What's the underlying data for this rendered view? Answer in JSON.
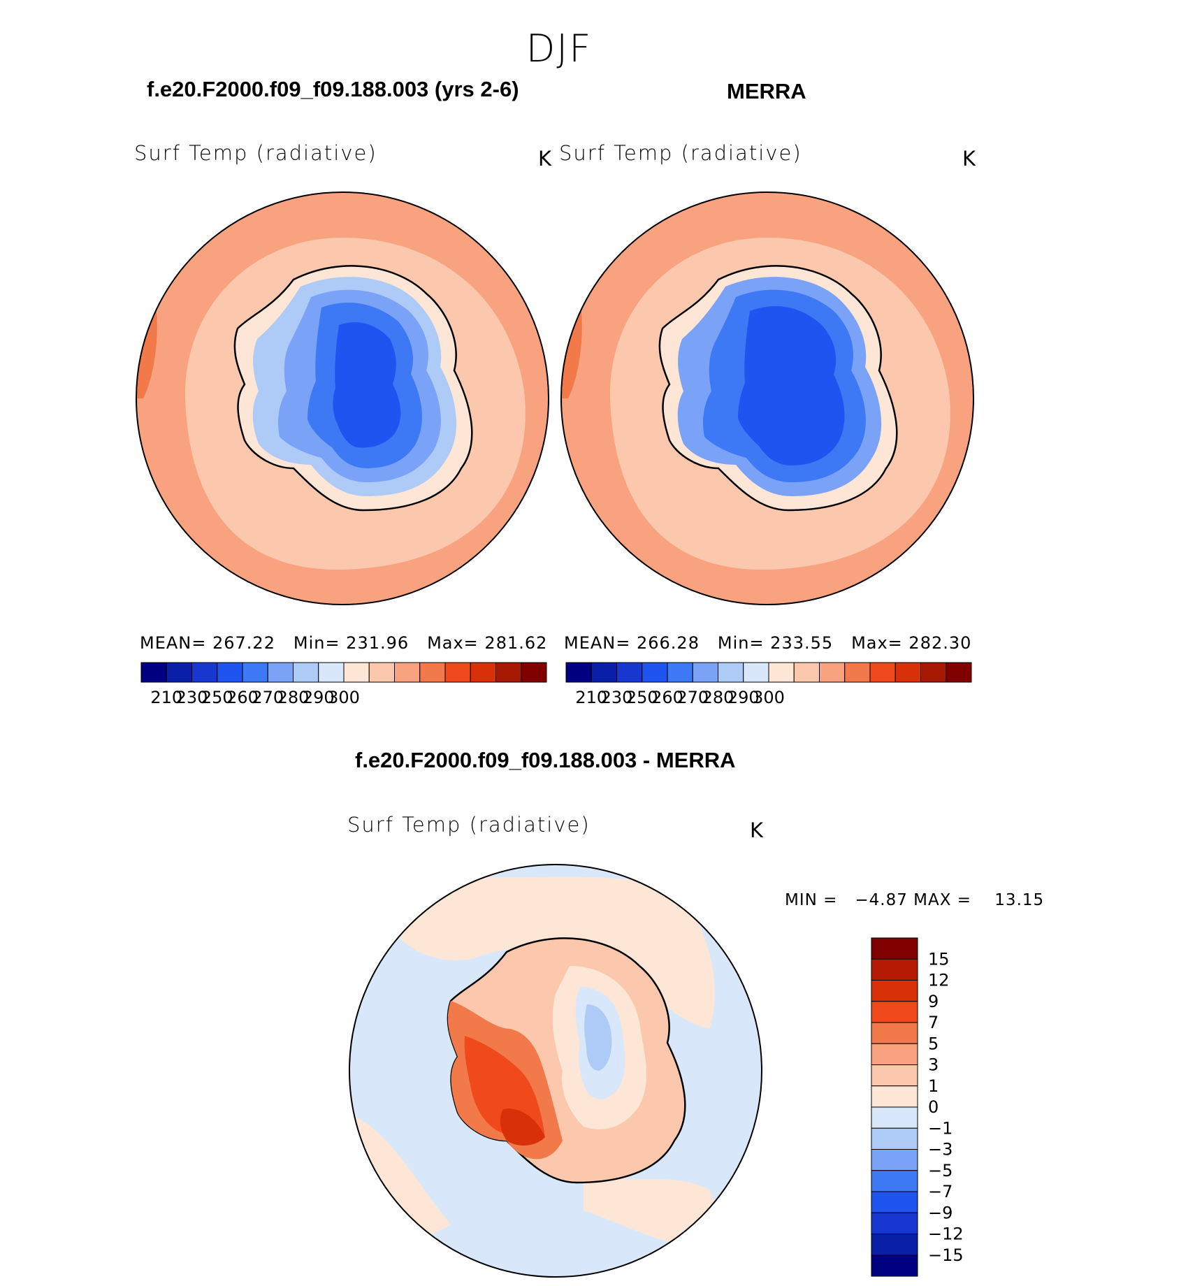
{
  "page": {
    "season": "DJF"
  },
  "panels": [
    {
      "title": "f.e20.F2000.f09_f09.188.003 (yrs 2-6)",
      "variable": "Surf Temp (radiative)",
      "units": "K",
      "stats": {
        "mean": "MEAN= 267.22",
        "min": "Min= 231.96",
        "max": "Max= 281.62"
      }
    },
    {
      "title": "MERRA",
      "variable": "Surf Temp (radiative)",
      "units": "K",
      "stats": {
        "mean": "MEAN= 266.28",
        "min": "Min= 233.55",
        "max": "Max= 282.30"
      }
    }
  ],
  "absolute_colorbar": {
    "colors": [
      "#000080",
      "#0a1fa8",
      "#1738d0",
      "#1f54f0",
      "#3d78f5",
      "#7aa2f7",
      "#aecbf8",
      "#d8e8fa",
      "#fde6d6",
      "#fbc8ad",
      "#f8a27f",
      "#f27a4a",
      "#f04a1c",
      "#d83008",
      "#a81904",
      "#800000"
    ],
    "tick_labels": [
      "210",
      "230",
      "250",
      "260",
      "270",
      "280",
      "290",
      "300"
    ]
  },
  "difference": {
    "title": "f.e20.F2000.f09_f09.188.003 - MERRA",
    "variable": "Surf Temp (radiative)",
    "units": "K",
    "minmax": "MIN =   −4.87 MAX =    13.15",
    "colorbar": {
      "colors_top_to_bottom": [
        "#800000",
        "#b51a04",
        "#d83008",
        "#f04a1c",
        "#f27a4a",
        "#f8a27f",
        "#fbc8ad",
        "#fde6d6",
        "#d8e8fa",
        "#aecbf8",
        "#7aa2f7",
        "#3d78f5",
        "#1f54f0",
        "#1738d0",
        "#0a1fa8",
        "#000080"
      ],
      "tick_labels": [
        "15",
        "12",
        "9",
        "7",
        "5",
        "3",
        "1",
        "0",
        "−1",
        "−3",
        "−5",
        "−7",
        "−9",
        "−12",
        "−15"
      ]
    }
  }
}
